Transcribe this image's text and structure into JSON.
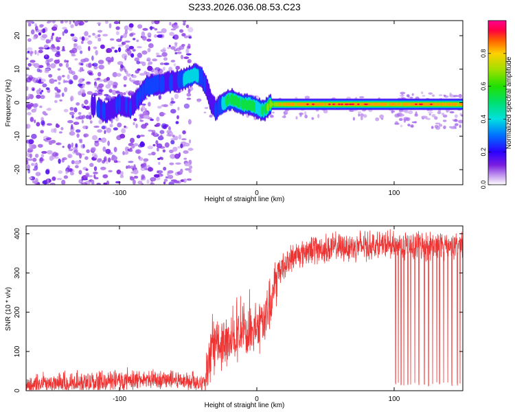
{
  "figure_title": "S233.2026.036.08.53.C23",
  "colors": {
    "snr_line": "#ee3333",
    "axis": "#000000",
    "background": "#ffffff"
  },
  "chart_data": [
    {
      "type": "heatmap",
      "xlabel": "Height of straight line (km)",
      "ylabel": "Frequency (Hz)",
      "xlim": [
        -168,
        150
      ],
      "ylim": [
        -24.5,
        24.5
      ],
      "xticks": [
        -100,
        0,
        100
      ],
      "yticks": [
        -20,
        -10,
        0,
        10,
        20
      ],
      "colorbar": {
        "label": "Normalized spectral amplitude",
        "range": [
          0,
          1
        ],
        "ticks": [
          "0.0",
          "0.2",
          "0.4",
          "0.6",
          "0.8"
        ],
        "colormap": "purple-blue-cyan-green-yellow-red-magenta"
      },
      "ridge_points": {
        "x": [
          -118,
          -110,
          -100,
          -92,
          -85,
          -80,
          -65,
          -57,
          -50,
          -45,
          -40,
          -36,
          -33,
          -30,
          -27,
          -22,
          -18,
          -14,
          -10,
          -5,
          0,
          5,
          10,
          20,
          40,
          60,
          80,
          100,
          120,
          150
        ],
        "freq": [
          -1,
          -3,
          -0.5,
          -1.5,
          2,
          5,
          6,
          6.5,
          7.5,
          8.5,
          7.5,
          4,
          0,
          -2,
          -1,
          0.5,
          1,
          0,
          -0.5,
          -0.5,
          -1.5,
          -2.5,
          -0.5,
          -0.5,
          -0.5,
          -0.5,
          -0.5,
          -0.5,
          -0.5,
          -0.5
        ],
        "amplitude": [
          0.15,
          0.2,
          0.2,
          0.2,
          0.25,
          0.3,
          0.2,
          0.25,
          0.35,
          0.4,
          0.3,
          0.2,
          0.15,
          0.2,
          0.3,
          0.5,
          0.6,
          0.5,
          0.55,
          0.6,
          0.4,
          0.5,
          0.7,
          0.8,
          0.85,
          0.85,
          0.85,
          0.8,
          0.85,
          0.8
        ]
      },
      "noise_region": {
        "x_range": [
          -168,
          -48
        ],
        "freq_range": [
          -24.5,
          24.5
        ],
        "amplitude": 0.1
      },
      "side_noise": [
        {
          "x_range": [
            100,
            150
          ],
          "freq_range": [
            -8,
            3
          ]
        }
      ]
    },
    {
      "type": "line",
      "xlabel": "Height of straight line (km)",
      "ylabel": "SNR (10 * v/v)",
      "xlim": [
        -168,
        150
      ],
      "ylim": [
        0,
        420
      ],
      "xticks": [
        -100,
        0,
        100
      ],
      "yticks": [
        0,
        100,
        200,
        300,
        400
      ],
      "series": [
        {
          "x": [
            -168,
            -140,
            -120,
            -100,
            -80,
            -60,
            -45,
            -40,
            -37,
            -35,
            -30,
            -25,
            -20,
            -15,
            -10,
            -5,
            0,
            5,
            10,
            15,
            20,
            30,
            40,
            60,
            80,
            100,
            120,
            150
          ],
          "y": [
            15,
            18,
            20,
            25,
            28,
            28,
            25,
            20,
            30,
            60,
            110,
            120,
            130,
            140,
            150,
            150,
            155,
            175,
            230,
            300,
            320,
            350,
            360,
            365,
            370,
            370,
            370,
            370
          ]
        }
      ],
      "dropouts_x": [
        101,
        103,
        105,
        107,
        110,
        112,
        115,
        118,
        122,
        125,
        128,
        131,
        133,
        136,
        139,
        142,
        146,
        148
      ],
      "dropout_floor": 12
    }
  ]
}
